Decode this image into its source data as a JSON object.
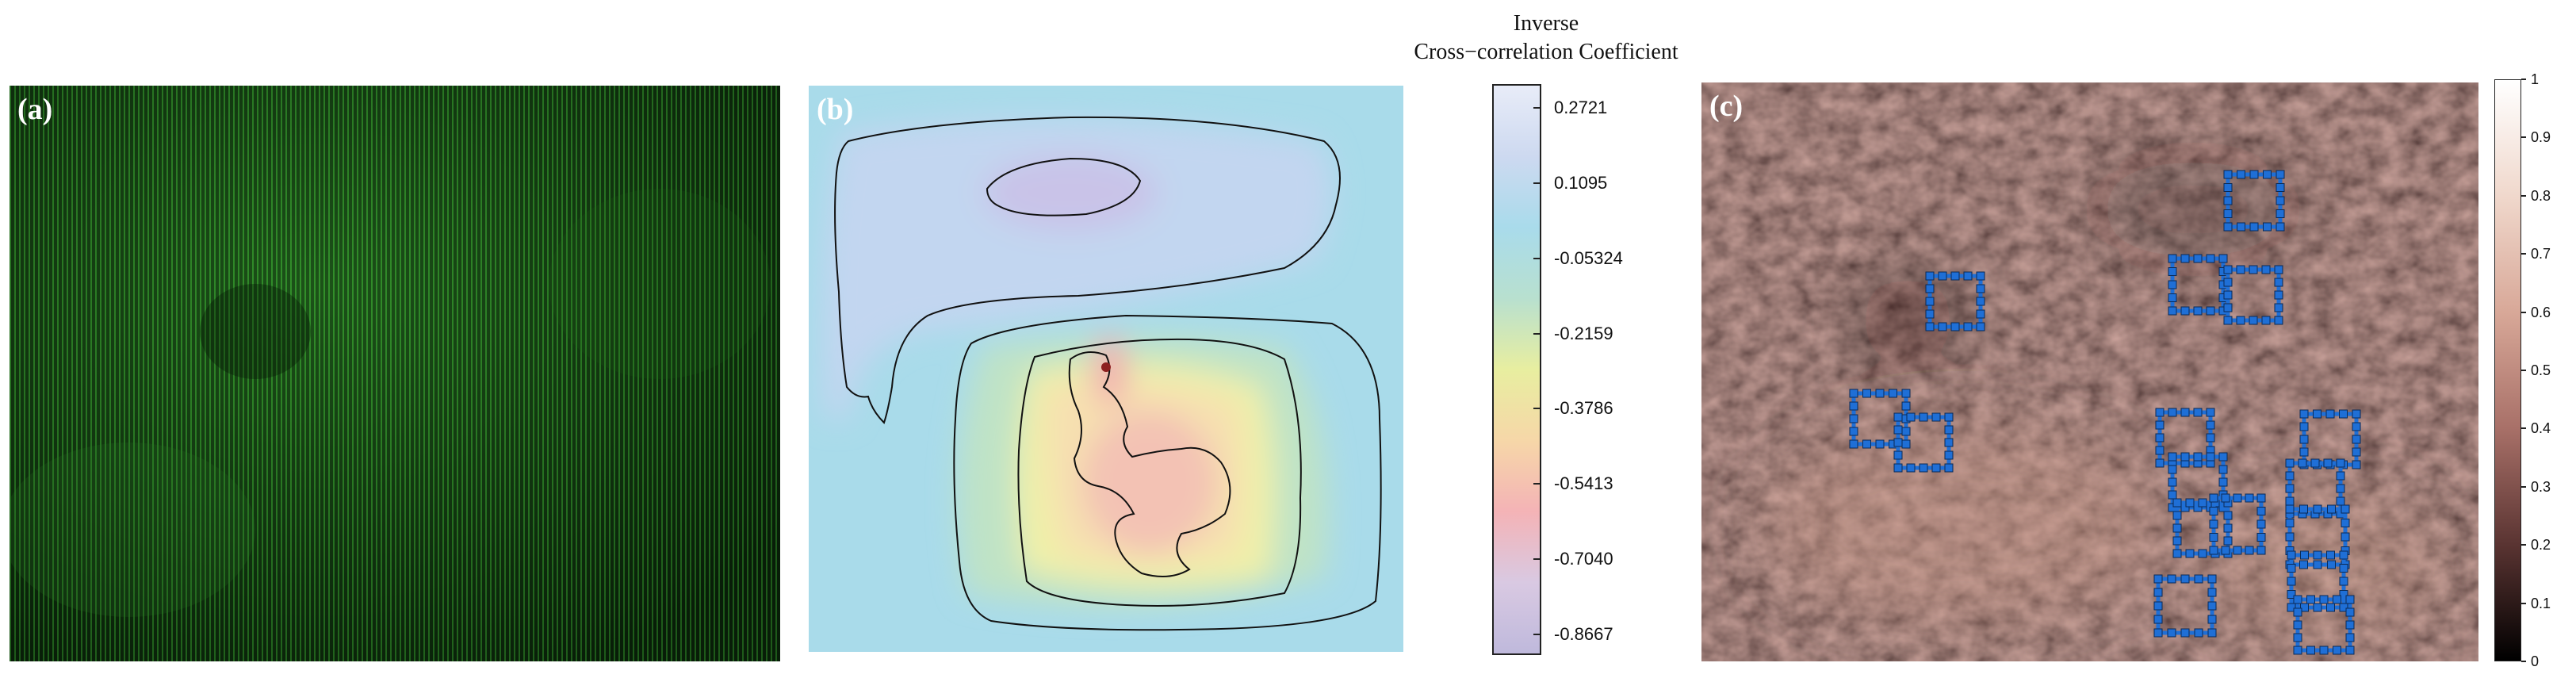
{
  "colorbar_title": {
    "line1": "Inverse",
    "line2": "Cross−correlation Coefficient"
  },
  "panels": {
    "a": {
      "label": "(a)"
    },
    "b": {
      "label": "(b)"
    },
    "c": {
      "label": "(c)"
    }
  },
  "colorbar_b": {
    "ticks": [
      "0.2721",
      "0.1095",
      "-0.05324",
      "-0.2159",
      "-0.3786",
      "-0.5413",
      "-0.7040",
      "-0.8667"
    ],
    "colors": [
      "#e8ecf8",
      "#cdd9f0",
      "#a9dbeb",
      "#b8e0cf",
      "#e8eea0",
      "#f6d7a8",
      "#f4b3b6",
      "#d9c9e2",
      "#bfb9dc"
    ]
  },
  "colorbar_c": {
    "ticks": [
      "1",
      "0.9",
      "0.8",
      "0.7",
      "0.6",
      "0.5",
      "0.4",
      "0.3",
      "0.2",
      "0.1",
      "0"
    ],
    "colors": [
      "#ffffff",
      "#f0d8cc",
      "#d8a898",
      "#a87068",
      "#5a3432",
      "#000000"
    ]
  },
  "colors": {
    "panel_a_base": "#0b2a0b",
    "panel_a_stripe": "#2f8c2a",
    "panel_c_base": "#6a4642",
    "box_color": "#1f6fd6"
  }
}
